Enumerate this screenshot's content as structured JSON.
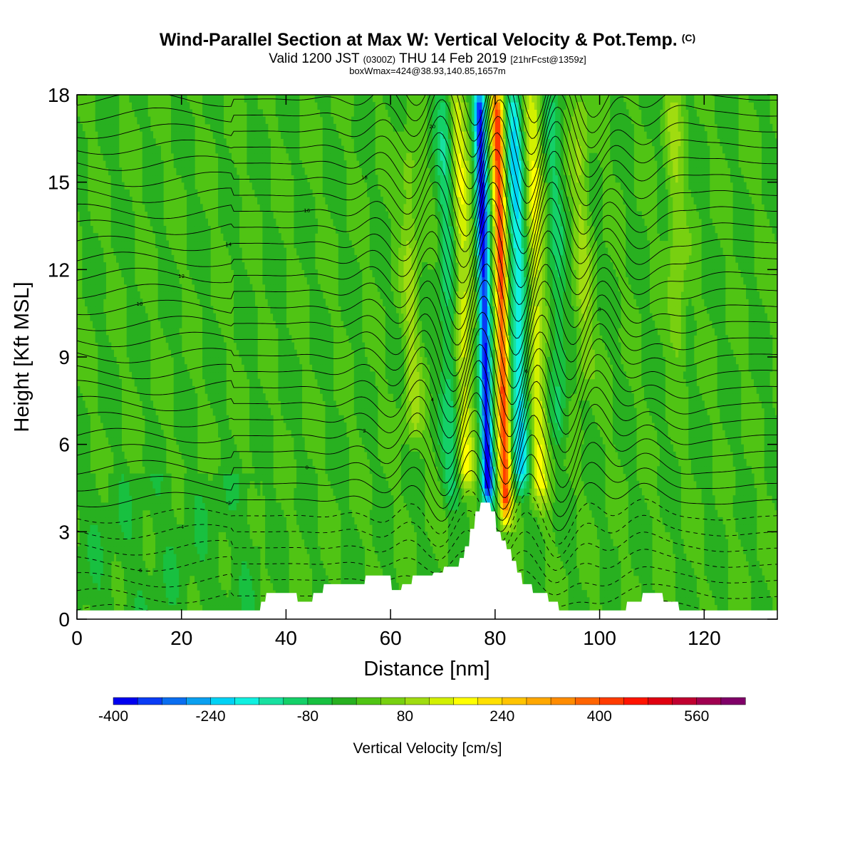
{
  "titles": {
    "main": "Wind-Parallel Section at Max W: Vertical Velocity & Pot.Temp.",
    "main_suffix": "(C)",
    "valid_prefix": "Valid 1200 JST",
    "valid_z": "(0300Z)",
    "valid_date": "THU 14 Feb 2019",
    "valid_fcst": "[21hrFcst@1359z]",
    "box": "boxWmax=424@38.93,140.85,1657m"
  },
  "chart_data": {
    "type": "heatmap",
    "xlabel": "Distance [nm]",
    "ylabel": "Height [Kft MSL]",
    "xlim": [
      0,
      134
    ],
    "ylim": [
      0,
      18
    ],
    "x_ticks": [
      0,
      20,
      40,
      60,
      80,
      100,
      120
    ],
    "y_ticks": [
      0,
      3,
      6,
      9,
      12,
      15,
      18
    ],
    "colorbar": {
      "title": "Vertical Velocity [cm/s]",
      "labels": [
        "-400",
        "-240",
        "-80",
        "80",
        "240",
        "400",
        "560"
      ],
      "label_values": [
        -400,
        -240,
        -80,
        80,
        240,
        400,
        560
      ],
      "levels": [
        -400,
        -360,
        -320,
        -280,
        -240,
        -200,
        -160,
        -120,
        -80,
        -40,
        0,
        40,
        80,
        120,
        160,
        200,
        240,
        280,
        320,
        360,
        400,
        440,
        480,
        520,
        560,
        600,
        640
      ],
      "colors": [
        "#0000f0",
        "#0a3cf5",
        "#0a6ef0",
        "#0aa0f0",
        "#00d2f5",
        "#10f0e0",
        "#18e0a0",
        "#14d068",
        "#18c040",
        "#28b020",
        "#50c414",
        "#78d010",
        "#a0dc10",
        "#d2f000",
        "#ffff00",
        "#ffe000",
        "#ffc400",
        "#ffa800",
        "#ff8c00",
        "#ff6400",
        "#ff3c00",
        "#ff1400",
        "#e00010",
        "#c00030",
        "#a00050",
        "#800068"
      ]
    },
    "vertical_velocity_features": [
      {
        "x_center": 81.3,
        "z_top": 18,
        "z_bottom": 3.5,
        "peak_cm_s": 424,
        "kind": "updraft core"
      },
      {
        "x_center": 78.0,
        "z_top": 18,
        "z_bottom": 4.0,
        "peak_cm_s": -380,
        "kind": "downdraft core"
      },
      {
        "x_center": 84.5,
        "z_top": 18,
        "z_bottom": 4.5,
        "peak_cm_s": -200,
        "kind": "downdraft"
      },
      {
        "x_center": 88.0,
        "z_top": 18,
        "z_bottom": 4.0,
        "peak_cm_s": 150,
        "kind": "updraft"
      },
      {
        "x_center": 74.0,
        "z_top": 18,
        "z_bottom": 4.5,
        "peak_cm_s": 140,
        "kind": "updraft"
      },
      {
        "x_center": 71.0,
        "z_top": 18,
        "z_bottom": 4.0,
        "peak_cm_s": -100,
        "kind": "downdraft"
      },
      {
        "x_center": 64.0,
        "z_top": 16,
        "z_bottom": 6.0,
        "peak_cm_s": 80,
        "kind": "weak wave"
      },
      {
        "x_center": 92.0,
        "z_top": 18,
        "z_bottom": 6.0,
        "peak_cm_s": -80,
        "kind": "weak wave"
      },
      {
        "x_center": 97.0,
        "z_top": 18,
        "z_bottom": 8.0,
        "peak_cm_s": 80,
        "kind": "weak wave"
      },
      {
        "x_center": 115.0,
        "z_top": 18,
        "z_bottom": 9.0,
        "peak_cm_s": 80,
        "kind": "weak wave"
      }
    ],
    "terrain_top_kft": [
      [
        0,
        0.3
      ],
      [
        34,
        0.3
      ],
      [
        35,
        0.6
      ],
      [
        36,
        0.9
      ],
      [
        40,
        0.9
      ],
      [
        42,
        0.6
      ],
      [
        45,
        0.9
      ],
      [
        47,
        1.2
      ],
      [
        54,
        1.2
      ],
      [
        55,
        1.5
      ],
      [
        57,
        1.5
      ],
      [
        60,
        1.0
      ],
      [
        62,
        1.2
      ],
      [
        64,
        1.5
      ],
      [
        68,
        1.6
      ],
      [
        70,
        1.8
      ],
      [
        73,
        2.1
      ],
      [
        74,
        2.5
      ],
      [
        75,
        3.1
      ],
      [
        76,
        3.7
      ],
      [
        77,
        4.0
      ],
      [
        78,
        4.0
      ],
      [
        79,
        3.7
      ],
      [
        80,
        3.0
      ],
      [
        81,
        2.7
      ],
      [
        82,
        2.4
      ],
      [
        83,
        2.0
      ],
      [
        84,
        1.6
      ],
      [
        85,
        1.2
      ],
      [
        87,
        0.9
      ],
      [
        90,
        0.6
      ],
      [
        92,
        0.3
      ],
      [
        104,
        0.3
      ],
      [
        105,
        0.6
      ],
      [
        108,
        0.9
      ],
      [
        110,
        0.9
      ],
      [
        112,
        0.6
      ],
      [
        115,
        0.3
      ],
      [
        134,
        0.3
      ]
    ],
    "theta_contour_labels": [
      "-6",
      "-4",
      "-2",
      "0",
      "2",
      "4",
      "6",
      "8",
      "10",
      "12",
      "14",
      "16",
      "18",
      "20"
    ],
    "theta_contour_interval_c": 1
  }
}
